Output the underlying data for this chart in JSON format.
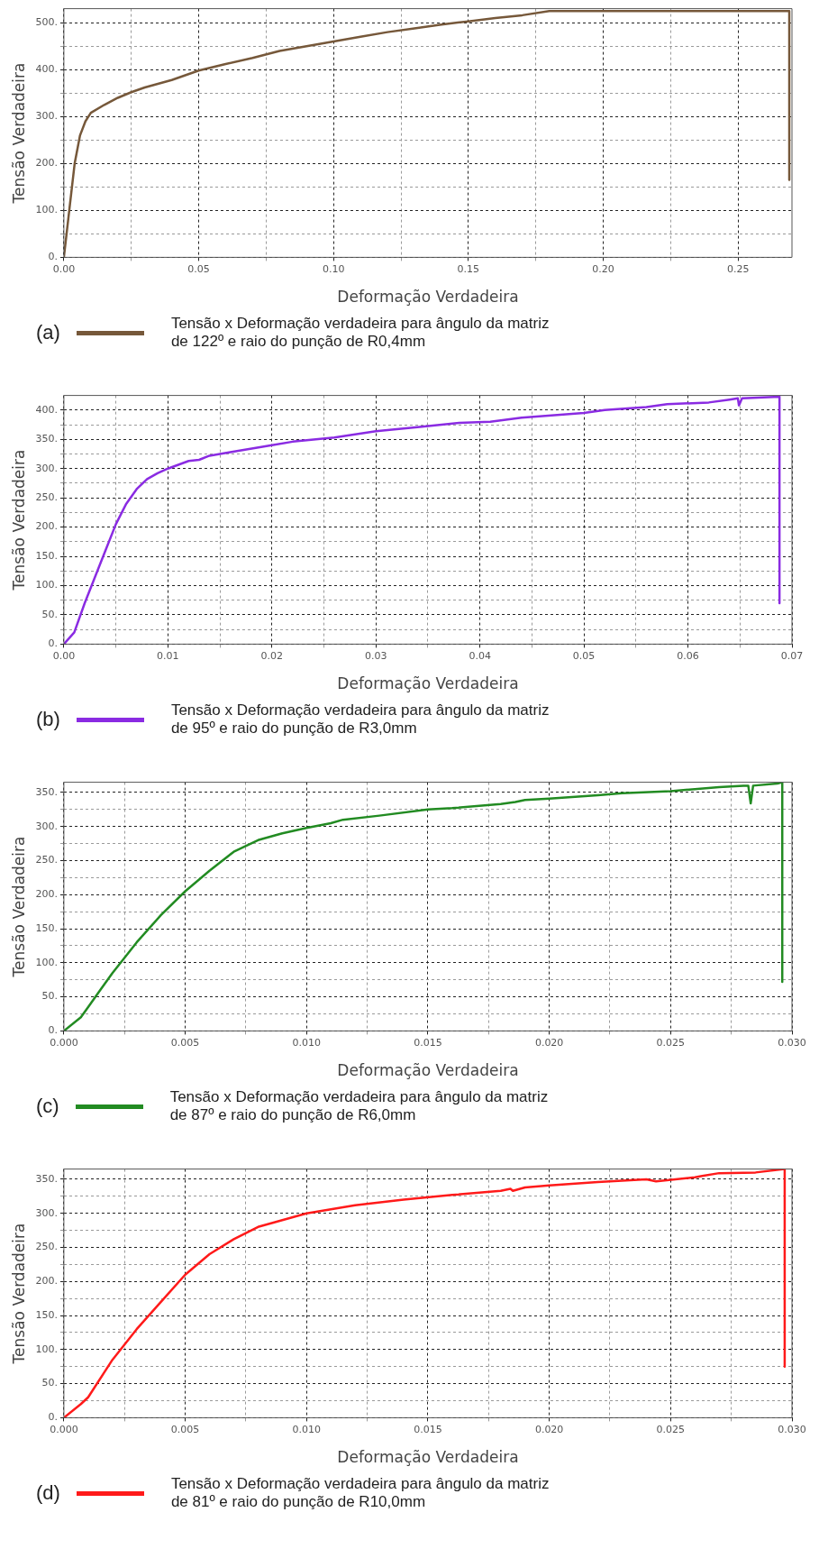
{
  "chart_data": [
    {
      "type": "line",
      "xlabel": "Deformação Verdadeira",
      "ylabel": "Tensão Verdadeira",
      "annotations": [
        "(a)"
      ],
      "legend": "bottom",
      "grid": true,
      "xlim": [
        0,
        0.27
      ],
      "ylim": [
        0,
        530
      ],
      "xticks": [
        {
          "value": 0,
          "label": "0.00"
        },
        {
          "value": 0.025,
          "label": null
        },
        {
          "value": 0.05,
          "label": "0.05"
        },
        {
          "value": 0.075,
          "label": null
        },
        {
          "value": 0.1,
          "label": "0.10"
        },
        {
          "value": 0.125,
          "label": null
        },
        {
          "value": 0.15,
          "label": "0.15"
        },
        {
          "value": 0.175,
          "label": null
        },
        {
          "value": 0.2,
          "label": "0.20"
        },
        {
          "value": 0.225,
          "label": null
        },
        {
          "value": 0.25,
          "label": "0.25"
        }
      ],
      "yticks": [
        {
          "value": 0,
          "label": "0."
        },
        {
          "value": 50,
          "label": null
        },
        {
          "value": 100,
          "label": "100."
        },
        {
          "value": 150,
          "label": null
        },
        {
          "value": 200,
          "label": "200."
        },
        {
          "value": 250,
          "label": null
        },
        {
          "value": 300,
          "label": "300."
        },
        {
          "value": 350,
          "label": null
        },
        {
          "value": 400,
          "label": "400."
        },
        {
          "value": 450,
          "label": null
        },
        {
          "value": 500,
          "label": "500."
        }
      ],
      "series": [
        {
          "name": "Tensão x Deformação verdadeira para ângulo da matriz\n de 122º e raio do punção de R0,4mm",
          "color": "#76583a",
          "x": [
            0,
            0.002,
            0.004,
            0.006,
            0.008,
            0.01,
            0.015,
            0.02,
            0.025,
            0.03,
            0.04,
            0.05,
            0.06,
            0.07,
            0.08,
            0.09,
            0.1,
            0.11,
            0.12,
            0.13,
            0.14,
            0.15,
            0.16,
            0.17,
            0.18,
            0.2,
            0.25,
            0.269,
            0.269
          ],
          "values": [
            0,
            100,
            200,
            260,
            290,
            308,
            325,
            340,
            352,
            362,
            378,
            398,
            412,
            425,
            440,
            450,
            460,
            470,
            480,
            488,
            496,
            503,
            510,
            516,
            525,
            525,
            525,
            525,
            165
          ]
        }
      ]
    },
    {
      "type": "line",
      "xlabel": "Deformação Verdadeira",
      "ylabel": "Tensão Verdadeira",
      "annotations": [
        "(b)"
      ],
      "legend": "bottom",
      "grid": true,
      "xlim": [
        0,
        0.07
      ],
      "ylim": [
        0,
        425
      ],
      "xticks": [
        {
          "value": 0,
          "label": "0.00"
        },
        {
          "value": 0.005,
          "label": null
        },
        {
          "value": 0.01,
          "label": "0.01"
        },
        {
          "value": 0.015,
          "label": null
        },
        {
          "value": 0.02,
          "label": "0.02"
        },
        {
          "value": 0.025,
          "label": null
        },
        {
          "value": 0.03,
          "label": "0.03"
        },
        {
          "value": 0.035,
          "label": null
        },
        {
          "value": 0.04,
          "label": "0.04"
        },
        {
          "value": 0.045,
          "label": null
        },
        {
          "value": 0.05,
          "label": "0.05"
        },
        {
          "value": 0.055,
          "label": null
        },
        {
          "value": 0.06,
          "label": "0.06"
        },
        {
          "value": 0.065,
          "label": null
        },
        {
          "value": 0.07,
          "label": "0.07"
        }
      ],
      "yticks": [
        {
          "value": 0,
          "label": "0."
        },
        {
          "value": 25,
          "label": null
        },
        {
          "value": 50,
          "label": "50."
        },
        {
          "value": 75,
          "label": null
        },
        {
          "value": 100,
          "label": "100."
        },
        {
          "value": 125,
          "label": null
        },
        {
          "value": 150,
          "label": "150."
        },
        {
          "value": 175,
          "label": null
        },
        {
          "value": 200,
          "label": "200."
        },
        {
          "value": 225,
          "label": null
        },
        {
          "value": 250,
          "label": "250."
        },
        {
          "value": 275,
          "label": null
        },
        {
          "value": 300,
          "label": "300."
        },
        {
          "value": 325,
          "label": null
        },
        {
          "value": 350,
          "label": "350."
        },
        {
          "value": 375,
          "label": null
        },
        {
          "value": 400,
          "label": "400."
        }
      ],
      "series": [
        {
          "name": "Tensão x Deformação verdadeira para ângulo da matriz\n de 95º e raio do punção de R3,0mm",
          "color": "#8a2be2",
          "x": [
            0,
            0.001,
            0.002,
            0.003,
            0.004,
            0.005,
            0.006,
            0.007,
            0.008,
            0.009,
            0.01,
            0.012,
            0.013,
            0.014,
            0.016,
            0.02,
            0.022,
            0.026,
            0.03,
            0.034,
            0.038,
            0.041,
            0.044,
            0.05,
            0.052,
            0.056,
            0.058,
            0.062,
            0.064,
            0.0648,
            0.0649,
            0.0652,
            0.0688,
            0.0688
          ],
          "values": [
            0,
            20,
            70,
            115,
            160,
            205,
            240,
            265,
            282,
            292,
            300,
            313,
            315,
            322,
            328,
            340,
            346,
            353,
            364,
            371,
            378,
            380,
            387,
            395,
            400,
            405,
            410,
            413,
            418,
            420,
            408,
            420,
            423,
            70
          ]
        }
      ]
    },
    {
      "type": "line",
      "xlabel": "Deformação Verdadeira",
      "ylabel": "Tensão Verdadeira",
      "annotations": [
        "(c)"
      ],
      "legend": "bottom",
      "grid": true,
      "xlim": [
        0,
        0.03
      ],
      "ylim": [
        0,
        365
      ],
      "xticks": [
        {
          "value": 0,
          "label": "0.000"
        },
        {
          "value": 0.0025,
          "label": null
        },
        {
          "value": 0.005,
          "label": "0.005"
        },
        {
          "value": 0.0075,
          "label": null
        },
        {
          "value": 0.01,
          "label": "0.010"
        },
        {
          "value": 0.0125,
          "label": null
        },
        {
          "value": 0.015,
          "label": "0.015"
        },
        {
          "value": 0.0175,
          "label": null
        },
        {
          "value": 0.02,
          "label": "0.020"
        },
        {
          "value": 0.0225,
          "label": null
        },
        {
          "value": 0.025,
          "label": "0.025"
        },
        {
          "value": 0.0275,
          "label": null
        },
        {
          "value": 0.03,
          "label": "0.030"
        }
      ],
      "yticks": [
        {
          "value": 0,
          "label": "0."
        },
        {
          "value": 25,
          "label": null
        },
        {
          "value": 50,
          "label": "50."
        },
        {
          "value": 75,
          "label": null
        },
        {
          "value": 100,
          "label": "100."
        },
        {
          "value": 125,
          "label": null
        },
        {
          "value": 150,
          "label": "150."
        },
        {
          "value": 175,
          "label": null
        },
        {
          "value": 200,
          "label": "200."
        },
        {
          "value": 225,
          "label": null
        },
        {
          "value": 250,
          "label": "250."
        },
        {
          "value": 275,
          "label": null
        },
        {
          "value": 300,
          "label": "300."
        },
        {
          "value": 325,
          "label": null
        },
        {
          "value": 350,
          "label": "350."
        }
      ],
      "series": [
        {
          "name": "Tensão x Deformação verdadeira para ângulo da matriz\n de 87º e raio do punção de R6,0mm",
          "color": "#228b22",
          "x": [
            0,
            0.0007,
            0.001,
            0.0015,
            0.002,
            0.003,
            0.004,
            0.005,
            0.006,
            0.007,
            0.008,
            0.009,
            0.01,
            0.011,
            0.0115,
            0.013,
            0.015,
            0.016,
            0.018,
            0.0186,
            0.019,
            0.02,
            0.022,
            0.023,
            0.025,
            0.026,
            0.027,
            0.028,
            0.0282,
            0.0283,
            0.0284,
            0.0294,
            0.0296,
            0.0296
          ],
          "values": [
            0,
            20,
            35,
            60,
            85,
            130,
            170,
            205,
            235,
            263,
            280,
            290,
            298,
            305,
            310,
            316,
            325,
            327,
            333,
            336,
            339,
            341,
            346,
            349,
            352,
            355,
            358,
            360,
            360,
            334,
            360,
            363,
            365,
            72
          ]
        }
      ]
    },
    {
      "type": "line",
      "xlabel": "Deformação Verdadeira",
      "ylabel": "Tensão Verdadeira",
      "annotations": [
        "(d)"
      ],
      "legend": "bottom",
      "grid": true,
      "xlim": [
        0,
        0.03
      ],
      "ylim": [
        0,
        365
      ],
      "xticks": [
        {
          "value": 0,
          "label": "0.000"
        },
        {
          "value": 0.0025,
          "label": null
        },
        {
          "value": 0.005,
          "label": "0.005"
        },
        {
          "value": 0.0075,
          "label": null
        },
        {
          "value": 0.01,
          "label": "0.010"
        },
        {
          "value": 0.0125,
          "label": null
        },
        {
          "value": 0.015,
          "label": "0.015"
        },
        {
          "value": 0.0175,
          "label": null
        },
        {
          "value": 0.02,
          "label": "0.020"
        },
        {
          "value": 0.0225,
          "label": null
        },
        {
          "value": 0.025,
          "label": "0.025"
        },
        {
          "value": 0.0275,
          "label": null
        },
        {
          "value": 0.03,
          "label": "0.030"
        }
      ],
      "yticks": [
        {
          "value": 0,
          "label": "0."
        },
        {
          "value": 25,
          "label": null
        },
        {
          "value": 50,
          "label": "50."
        },
        {
          "value": 75,
          "label": null
        },
        {
          "value": 100,
          "label": "100."
        },
        {
          "value": 125,
          "label": null
        },
        {
          "value": 150,
          "label": "150."
        },
        {
          "value": 175,
          "label": null
        },
        {
          "value": 200,
          "label": "200."
        },
        {
          "value": 225,
          "label": null
        },
        {
          "value": 250,
          "label": "250."
        },
        {
          "value": 275,
          "label": null
        },
        {
          "value": 300,
          "label": "300."
        },
        {
          "value": 325,
          "label": null
        },
        {
          "value": 350,
          "label": "350."
        }
      ],
      "series": [
        {
          "name": "Tensão x Deformação verdadeira para ângulo da matriz\n de 81º e raio do punção de R10,0mm",
          "color": "#ff1a1a",
          "x": [
            0,
            0.0007,
            0.001,
            0.002,
            0.003,
            0.004,
            0.005,
            0.006,
            0.007,
            0.008,
            0.009,
            0.01,
            0.012,
            0.014,
            0.016,
            0.018,
            0.0184,
            0.0185,
            0.019,
            0.02,
            0.022,
            0.024,
            0.0244,
            0.026,
            0.0263,
            0.027,
            0.0285,
            0.0297,
            0.0297
          ],
          "values": [
            0,
            20,
            30,
            85,
            130,
            170,
            210,
            240,
            262,
            280,
            290,
            300,
            312,
            320,
            327,
            333,
            336,
            333,
            338,
            341,
            346,
            350,
            347,
            353,
            355,
            359,
            360,
            365,
            75
          ]
        }
      ]
    }
  ]
}
